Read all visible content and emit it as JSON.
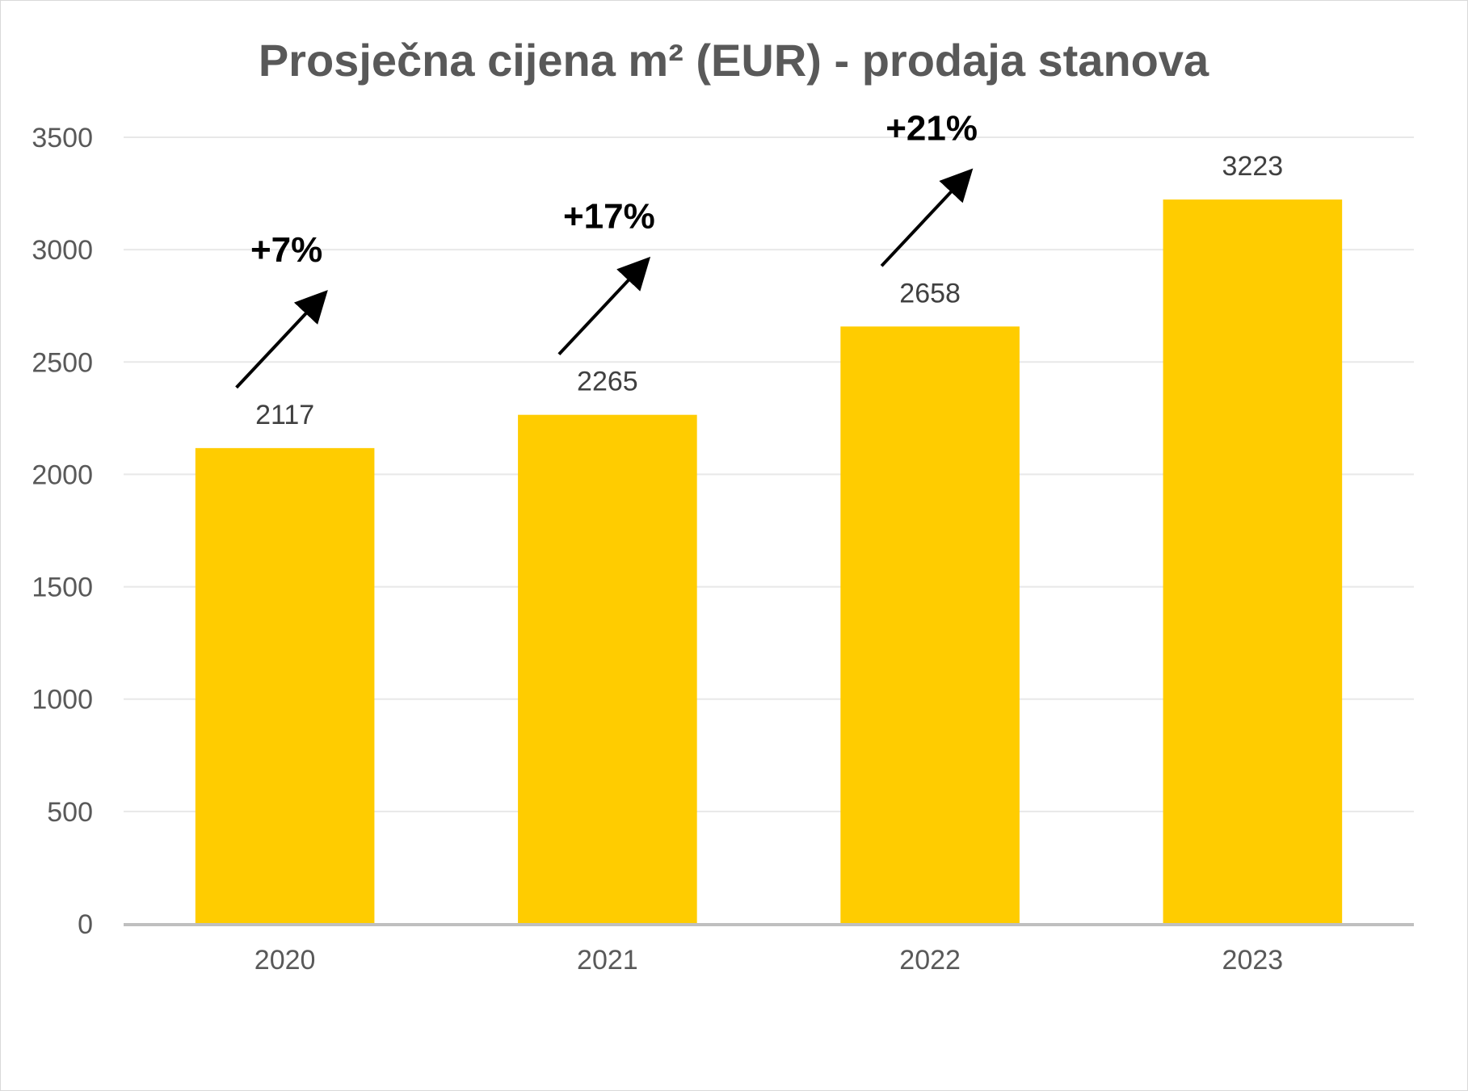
{
  "chart_data": {
    "type": "bar",
    "title": "Prosječna cijena m² (EUR) - prodaja stanova",
    "categories": [
      "2020",
      "2021",
      "2022",
      "2023"
    ],
    "values": [
      2117,
      2265,
      2658,
      3223
    ],
    "ylim": [
      0,
      3500
    ],
    "yticks": [
      0,
      500,
      1000,
      1500,
      2000,
      2500,
      3000,
      3500
    ],
    "xlabel": "",
    "ylabel": "",
    "grid": true,
    "legend": "none",
    "bar_color": "#FFCC00",
    "annotations": [
      {
        "text": "+7%",
        "after_category": "2020"
      },
      {
        "text": "+17%",
        "after_category": "2021"
      },
      {
        "text": "+21%",
        "after_category": "2022"
      }
    ]
  }
}
